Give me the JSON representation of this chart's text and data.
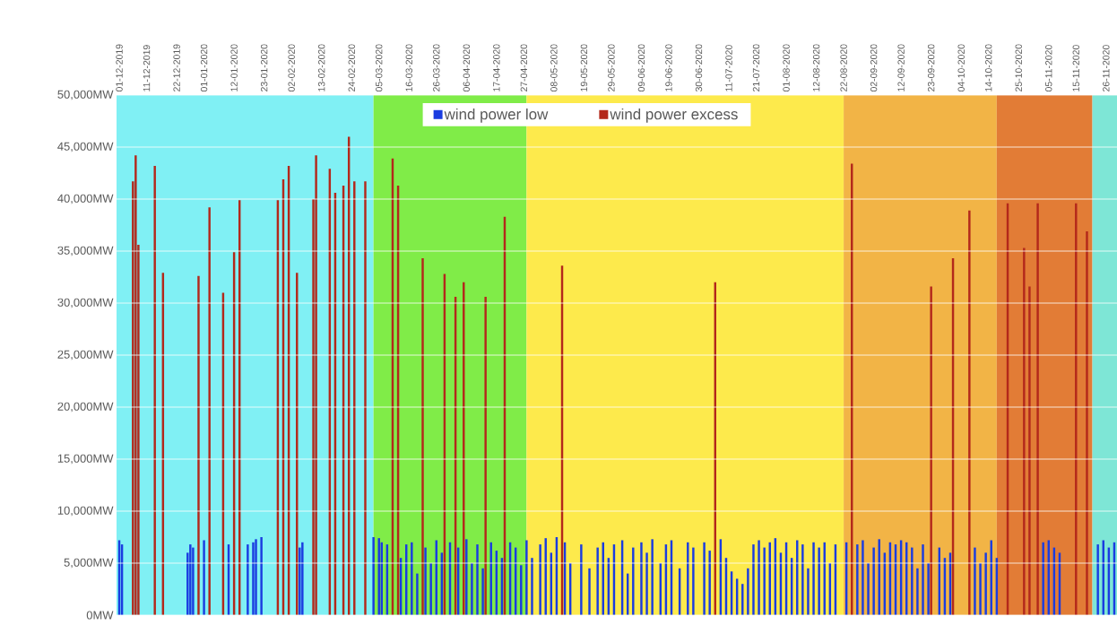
{
  "chart_data": {
    "type": "bar",
    "xlim": [
      "2019-11-30",
      "2020-11-30"
    ],
    "xticks": [
      {
        "value": "2019-12-01",
        "label": "01-12-2019"
      },
      {
        "value": "2019-12-11",
        "label": "11-12-2019"
      },
      {
        "value": "2019-12-22",
        "label": "22-12-2019"
      },
      {
        "value": "2020-01-01",
        "label": "01-01-2020"
      },
      {
        "value": "2020-01-12",
        "label": "12-01-2020"
      },
      {
        "value": "2020-01-23",
        "label": "23-01-2020"
      },
      {
        "value": "2020-02-02",
        "label": "02-02-2020"
      },
      {
        "value": "2020-02-13",
        "label": "13-02-2020"
      },
      {
        "value": "2020-02-24",
        "label": "24-02-2020"
      },
      {
        "value": "2020-03-05",
        "label": "05-03-2020"
      },
      {
        "value": "2020-03-16",
        "label": "16-03-2020"
      },
      {
        "value": "2020-03-26",
        "label": "26-03-2020"
      },
      {
        "value": "2020-04-06",
        "label": "06-04-2020"
      },
      {
        "value": "2020-04-17",
        "label": "17-04-2020"
      },
      {
        "value": "2020-04-27",
        "label": "27-04-2020"
      },
      {
        "value": "2020-05-08",
        "label": "08-05-2020"
      },
      {
        "value": "2020-05-19",
        "label": "19-05-2020"
      },
      {
        "value": "2020-05-29",
        "label": "29-05-2020"
      },
      {
        "value": "2020-06-09",
        "label": "09-06-2020"
      },
      {
        "value": "2020-06-19",
        "label": "19-06-2020"
      },
      {
        "value": "2020-06-30",
        "label": "30-06-2020"
      },
      {
        "value": "2020-07-11",
        "label": "11-07-2020"
      },
      {
        "value": "2020-07-21",
        "label": "21-07-2020"
      },
      {
        "value": "2020-08-01",
        "label": "01-08-2020"
      },
      {
        "value": "2020-08-12",
        "label": "12-08-2020"
      },
      {
        "value": "2020-08-22",
        "label": "22-08-2020"
      },
      {
        "value": "2020-09-02",
        "label": "02-09-2020"
      },
      {
        "value": "2020-09-12",
        "label": "12-09-2020"
      },
      {
        "value": "2020-09-23",
        "label": "23-09-2020"
      },
      {
        "value": "2020-10-04",
        "label": "04-10-2020"
      },
      {
        "value": "2020-10-14",
        "label": "14-10-2020"
      },
      {
        "value": "2020-10-25",
        "label": "25-10-2020"
      },
      {
        "value": "2020-11-05",
        "label": "05-11-2020"
      },
      {
        "value": "2020-11-15",
        "label": "15-11-2020"
      },
      {
        "value": "2020-11-26",
        "label": "26-11-2020"
      }
    ],
    "ylim": [
      0,
      50000
    ],
    "yticks": [
      {
        "value": 0,
        "label": "0MW"
      },
      {
        "value": 5000,
        "label": "5,000MW"
      },
      {
        "value": 10000,
        "label": "10,000MW"
      },
      {
        "value": 15000,
        "label": "15,000MW"
      },
      {
        "value": 20000,
        "label": "20,000MW"
      },
      {
        "value": 25000,
        "label": "25,000MW"
      },
      {
        "value": 30000,
        "label": "30,000MW"
      },
      {
        "value": 35000,
        "label": "35,000MW"
      },
      {
        "value": 40000,
        "label": "40,000MW"
      },
      {
        "value": 45000,
        "label": "45,000MW"
      },
      {
        "value": 50000,
        "label": "50,000MW"
      }
    ],
    "grid": "y",
    "legend": "top",
    "bands": [
      {
        "axis": "x",
        "from": "2019-11-30",
        "to": "2020-03-03",
        "color": "#80f0f4"
      },
      {
        "axis": "x",
        "from": "2020-03-03",
        "to": "2020-04-28",
        "color": "#80ec48"
      },
      {
        "axis": "x",
        "from": "2020-04-28",
        "to": "2020-08-22",
        "color": "#fdea4c"
      },
      {
        "axis": "x",
        "from": "2020-08-22",
        "to": "2020-10-17",
        "color": "#f2b446"
      },
      {
        "axis": "x",
        "from": "2020-10-17",
        "to": "2020-11-21",
        "color": "#e27c36"
      },
      {
        "axis": "x",
        "from": "2020-11-21",
        "to": "2020-11-30",
        "color": "#7ee6d6"
      }
    ],
    "series": [
      {
        "name": "wind power low",
        "color": "#1a3ce0",
        "x": [
          "2019-12-01",
          "2019-12-02",
          "2019-12-26",
          "2019-12-27",
          "2019-12-28",
          "2020-01-01",
          "2020-01-10",
          "2020-01-17",
          "2020-01-19",
          "2020-01-20",
          "2020-01-22",
          "2020-02-05",
          "2020-02-06",
          "2020-03-03",
          "2020-03-05",
          "2020-03-06",
          "2020-03-08",
          "2020-03-13",
          "2020-03-15",
          "2020-03-17",
          "2020-03-19",
          "2020-03-22",
          "2020-03-24",
          "2020-03-26",
          "2020-03-28",
          "2020-03-31",
          "2020-04-03",
          "2020-04-06",
          "2020-04-08",
          "2020-04-10",
          "2020-04-12",
          "2020-04-15",
          "2020-04-17",
          "2020-04-19",
          "2020-04-22",
          "2020-04-24",
          "2020-04-26",
          "2020-04-28",
          "2020-04-30",
          "2020-05-03",
          "2020-05-05",
          "2020-05-07",
          "2020-05-09",
          "2020-05-12",
          "2020-05-14",
          "2020-05-18",
          "2020-05-21",
          "2020-05-24",
          "2020-05-26",
          "2020-05-28",
          "2020-05-30",
          "2020-06-02",
          "2020-06-04",
          "2020-06-06",
          "2020-06-09",
          "2020-06-11",
          "2020-06-13",
          "2020-06-16",
          "2020-06-18",
          "2020-06-20",
          "2020-06-23",
          "2020-06-26",
          "2020-06-28",
          "2020-07-02",
          "2020-07-04",
          "2020-07-08",
          "2020-07-10",
          "2020-07-12",
          "2020-07-14",
          "2020-07-16",
          "2020-07-18",
          "2020-07-20",
          "2020-07-22",
          "2020-07-24",
          "2020-07-26",
          "2020-07-28",
          "2020-07-30",
          "2020-08-01",
          "2020-08-03",
          "2020-08-05",
          "2020-08-07",
          "2020-08-09",
          "2020-08-11",
          "2020-08-13",
          "2020-08-15",
          "2020-08-17",
          "2020-08-19",
          "2020-08-23",
          "2020-08-27",
          "2020-08-29",
          "2020-08-31",
          "2020-09-02",
          "2020-09-04",
          "2020-09-06",
          "2020-09-08",
          "2020-09-10",
          "2020-09-12",
          "2020-09-14",
          "2020-09-16",
          "2020-09-18",
          "2020-09-20",
          "2020-09-22",
          "2020-09-26",
          "2020-09-28",
          "2020-09-30",
          "2020-10-09",
          "2020-10-11",
          "2020-10-13",
          "2020-10-15",
          "2020-10-17",
          "2020-11-03",
          "2020-11-05",
          "2020-11-07",
          "2020-11-09",
          "2020-11-23",
          "2020-11-25",
          "2020-11-27",
          "2020-11-29"
        ],
        "values": [
          7200,
          6800,
          6000,
          6800,
          6500,
          7200,
          6800,
          6800,
          7000,
          7300,
          7500,
          6500,
          7000,
          7500,
          7400,
          7000,
          6800,
          5500,
          6800,
          7000,
          4000,
          6500,
          5000,
          7200,
          6000,
          7000,
          6500,
          7300,
          5000,
          6800,
          4500,
          7000,
          6200,
          5500,
          7000,
          6500,
          4800,
          7200,
          5500,
          6800,
          7400,
          6000,
          7500,
          7000,
          5000,
          6800,
          4500,
          6500,
          7000,
          5500,
          6800,
          7200,
          4000,
          6500,
          7000,
          6000,
          7300,
          5000,
          6800,
          7200,
          4500,
          7000,
          6500,
          7000,
          6200,
          7300,
          5500,
          4200,
          3500,
          3000,
          4500,
          6800,
          7200,
          6500,
          7000,
          7400,
          6000,
          7000,
          5500,
          7200,
          6800,
          4500,
          7000,
          6500,
          7000,
          5000,
          6800,
          7000,
          6800,
          7200,
          5000,
          6500,
          7300,
          6000,
          7000,
          6800,
          7200,
          7000,
          6500,
          4500,
          6800,
          5000,
          6500,
          5500,
          6000,
          6500,
          5000,
          6000,
          7200,
          5500,
          7000,
          7200,
          6500,
          6000,
          6800,
          7200,
          6500,
          7000
        ]
      },
      {
        "name": "wind power excess",
        "color": "#b3281b",
        "x": [
          "2019-12-06",
          "2019-12-07",
          "2019-12-08",
          "2019-12-14",
          "2019-12-17",
          "2019-12-30",
          "2020-01-03",
          "2020-01-08",
          "2020-01-12",
          "2020-01-14",
          "2020-01-28",
          "2020-01-30",
          "2020-02-01",
          "2020-02-04",
          "2020-02-10",
          "2020-02-11",
          "2020-02-16",
          "2020-02-18",
          "2020-02-21",
          "2020-02-23",
          "2020-02-25",
          "2020-02-29",
          "2020-03-10",
          "2020-03-12",
          "2020-03-21",
          "2020-03-29",
          "2020-04-02",
          "2020-04-05",
          "2020-04-13",
          "2020-04-20",
          "2020-05-11",
          "2020-07-06",
          "2020-08-25",
          "2020-09-23",
          "2020-10-01",
          "2020-10-07",
          "2020-10-21",
          "2020-10-27",
          "2020-10-29",
          "2020-11-01",
          "2020-11-15",
          "2020-11-19"
        ],
        "values": [
          41700,
          44200,
          35600,
          43200,
          32900,
          32600,
          39200,
          31000,
          34900,
          39900,
          39900,
          41900,
          43200,
          32900,
          40000,
          44200,
          42900,
          40600,
          41300,
          46000,
          41700,
          41700,
          43900,
          41300,
          34300,
          32800,
          30600,
          32000,
          30600,
          38300,
          33600,
          32000,
          43400,
          31600,
          34300,
          38900,
          39600,
          35300,
          31600,
          39600,
          39600,
          36900
        ]
      }
    ]
  }
}
